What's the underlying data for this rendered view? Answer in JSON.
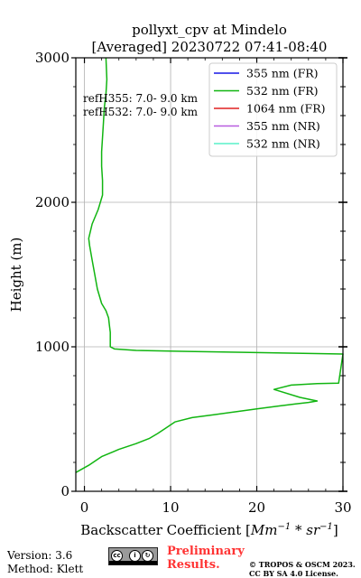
{
  "chart_data": {
    "type": "line",
    "title_line1": "pollyxt_cpv at Mindelo",
    "title_line2": "[Averaged] 20230722 07:41-08:40",
    "xlabel": "Backscatter Coefficient",
    "xlabel_unit_base": "Mm",
    "xlabel_unit_exp1": "−1",
    "xlabel_unit_mid": " * sr",
    "xlabel_unit_exp2": "−1",
    "ylabel": "Height (m)",
    "xlim": [
      -1,
      30
    ],
    "ylim": [
      0,
      3000
    ],
    "xticks": [
      0,
      10,
      20,
      30
    ],
    "yticks": [
      0,
      1000,
      2000,
      3000
    ],
    "grid": true,
    "legend_position": "top-right",
    "series": [
      {
        "name": "355 nm (FR)",
        "color": "#1616e6",
        "x": [],
        "y": []
      },
      {
        "name": "532 nm (FR)",
        "color": "#11b511",
        "x": [
          -1.0,
          0.5,
          2.0,
          4.0,
          6.0,
          7.5,
          8.5,
          9.5,
          10.5,
          12.5,
          15.0,
          17.5,
          20.0,
          22.5,
          24.5,
          26.0,
          27.0,
          25.0,
          22.0,
          24.0,
          27.0,
          29.5,
          30.0,
          20.0,
          12.0,
          6.0,
          3.5,
          3.0,
          3.0,
          3.0,
          2.9,
          2.8,
          2.5,
          2.0,
          1.5,
          1.2,
          0.9,
          0.6,
          0.5,
          0.9,
          1.6,
          2.1,
          2.1,
          2.0,
          2.0,
          2.1,
          2.2,
          2.3,
          2.5,
          2.6,
          2.5
        ],
        "y": [
          130,
          180,
          240,
          290,
          330,
          365,
          400,
          440,
          480,
          510,
          530,
          550,
          570,
          590,
          605,
          615,
          625,
          650,
          705,
          735,
          745,
          748,
          950,
          960,
          968,
          975,
          985,
          1000,
          1050,
          1100,
          1150,
          1200,
          1250,
          1300,
          1400,
          1500,
          1600,
          1700,
          1750,
          1850,
          1950,
          2050,
          2150,
          2250,
          2350,
          2450,
          2550,
          2650,
          2750,
          2850,
          3000
        ]
      },
      {
        "name": "1064 nm (FR)",
        "color": "#e02020",
        "x": [],
        "y": []
      },
      {
        "name": "355 nm (NR)",
        "color": "#b85cdf",
        "x": [],
        "y": []
      },
      {
        "name": "532 nm (NR)",
        "color": "#58f0c8",
        "x": [],
        "y": []
      }
    ],
    "annotations": [
      "refH355:  7.0- 9.0 km",
      "refH532:  7.0- 9.0 km"
    ]
  },
  "footer": {
    "version": "Version: 3.6",
    "method": "Method: Klett",
    "preliminary_line1": "Preliminary",
    "preliminary_line2": "Results.",
    "copyright_line1": "© TROPOS & OSCM 2023.",
    "copyright_line2": "CC BY SA 4.0 License.",
    "preliminary_color": "#ff3333"
  }
}
